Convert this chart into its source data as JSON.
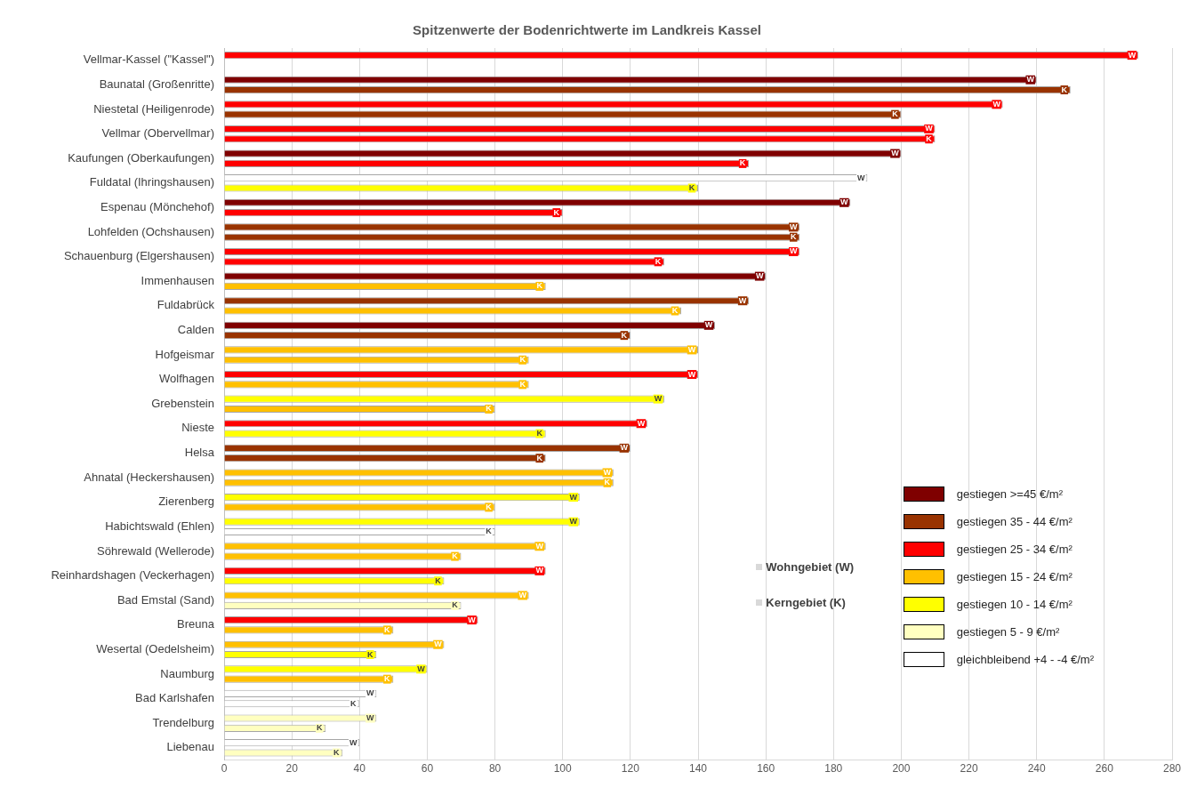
{
  "chart_data": {
    "type": "bar",
    "orientation": "horizontal",
    "title": "Spitzenwerte der Bodenrichtwerte im Landkreis Kassel",
    "categories": [
      "Vellmar-Kassel (\"Kassel\")",
      "Baunatal (Großenritte)",
      "Niestetal (Heiligenrode)",
      "Vellmar (Obervellmar)",
      "Kaufungen (Oberkaufungen)",
      "Fuldatal (Ihringshausen)",
      "Espenau (Mönchehof)",
      "Lohfelden (Ochshausen)",
      "Schauenburg (Elgershausen)",
      "Immenhausen",
      "Fuldabrück",
      "Calden",
      "Hofgeismar",
      "Wolfhagen",
      "Grebenstein",
      "Nieste",
      "Helsa",
      "Ahnatal (Heckershausen)",
      "Zierenberg",
      "Habichtswald (Ehlen)",
      "Söhrewald (Wellerode)",
      "Reinhardshagen (Veckerhagen)",
      "Bad Emstal (Sand)",
      "Breuna",
      "Wesertal (Oedelsheim)",
      "Naumburg",
      "Bad Karlshafen",
      "Trendelburg",
      "Liebenau"
    ],
    "series": [
      {
        "name": "Wohngebiet (W)",
        "color": "#d9d9d9",
        "values": [
          270,
          240,
          230,
          210,
          200,
          190,
          185,
          170,
          170,
          160,
          155,
          145,
          140,
          140,
          130,
          125,
          120,
          115,
          105,
          105,
          95,
          95,
          90,
          75,
          65,
          60,
          45,
          45,
          40
        ],
        "colors": [
          "#ff0000",
          "#7f0000",
          "#ff0000",
          "#ff0000",
          "#7f0000",
          "#ffffff",
          "#7f0000",
          "#993300",
          "#ff0000",
          "#7f0000",
          "#993300",
          "#7f0000",
          "#ffc000",
          "#ff0000",
          "#ffff00",
          "#ff0000",
          "#993300",
          "#ffc000",
          "#ffff00",
          "#ffff00",
          "#ffc000",
          "#ff0000",
          "#ffc000",
          "#ff0000",
          "#ffc000",
          "#ffff00",
          "#ffffff",
          "#ffffc0",
          "#ffffff"
        ],
        "value_labels": [
          "W",
          "W",
          "W",
          "W",
          "W",
          "W",
          "W",
          "W",
          "W",
          "W",
          "W",
          "W",
          "W",
          "W",
          "W",
          "W",
          "W",
          "W",
          "W",
          "W",
          "W",
          "W",
          "W",
          "W",
          "W",
          "W",
          "W",
          "W",
          "W"
        ]
      },
      {
        "name": "Kerngebiet (K)",
        "color": "#d9d9d9",
        "values": [
          null,
          250,
          200,
          210,
          155,
          140,
          100,
          170,
          130,
          95,
          135,
          120,
          90,
          90,
          80,
          95,
          95,
          115,
          80,
          80,
          70,
          65,
          70,
          50,
          45,
          50,
          40,
          30,
          35
        ],
        "colors": [
          null,
          "#993300",
          "#993300",
          "#ff0000",
          "#ff0000",
          "#ffff00",
          "#ff0000",
          "#993300",
          "#ff0000",
          "#ffc000",
          "#ffc000",
          "#993300",
          "#ffc000",
          "#ffc000",
          "#ffc000",
          "#ffff00",
          "#993300",
          "#ffc000",
          "#ffc000",
          "#ffffff",
          "#ffc000",
          "#ffff00",
          "#ffffc0",
          "#ffc000",
          "#ffff00",
          "#ffc000",
          "#ffffff",
          "#ffffc0",
          "#ffffc0"
        ],
        "value_labels": [
          null,
          "K",
          "K",
          "K",
          "K",
          "K",
          "K",
          "K",
          "K",
          "K",
          "K",
          "K",
          "K",
          "K",
          "K",
          "K",
          "K",
          "K",
          "K",
          "K",
          "K",
          "K",
          "K",
          "K",
          "K",
          "K",
          "K",
          "K",
          "K"
        ]
      },
      {
        "name": "gestiegen >=45 €/m²",
        "color": "#7f0000",
        "values": [
          null,
          null,
          null,
          null,
          null,
          null,
          null,
          null,
          null,
          null,
          null,
          null,
          null,
          null,
          null,
          null,
          null,
          null,
          null,
          null,
          null,
          null,
          null,
          null,
          null,
          null,
          null,
          null,
          null
        ]
      },
      {
        "name": "gestiegen 35 - 44 €/m²",
        "color": "#993300",
        "values": [
          null,
          null,
          null,
          null,
          null,
          null,
          null,
          null,
          null,
          null,
          null,
          null,
          null,
          null,
          null,
          null,
          null,
          null,
          null,
          null,
          null,
          null,
          null,
          null,
          null,
          null,
          null,
          null,
          null
        ]
      },
      {
        "name": "gestiegen 25 - 34 €/m²",
        "color": "#ff0000",
        "values": [
          null,
          null,
          null,
          null,
          null,
          null,
          null,
          null,
          null,
          null,
          null,
          null,
          null,
          null,
          null,
          null,
          null,
          null,
          null,
          null,
          null,
          null,
          null,
          null,
          null,
          null,
          null,
          null,
          null
        ]
      },
      {
        "name": "gestiegen 15 - 24 €/m²",
        "color": "#ffc000",
        "values": [
          null,
          null,
          null,
          null,
          null,
          null,
          null,
          null,
          null,
          null,
          null,
          null,
          null,
          null,
          null,
          null,
          null,
          null,
          null,
          null,
          null,
          null,
          null,
          null,
          null,
          null,
          null,
          null,
          null
        ]
      },
      {
        "name": "gestiegen 10 - 14 €/m²",
        "color": "#ffff00",
        "values": [
          null,
          null,
          null,
          null,
          null,
          null,
          null,
          null,
          null,
          null,
          null,
          null,
          null,
          null,
          null,
          null,
          null,
          null,
          null,
          null,
          null,
          null,
          null,
          null,
          null,
          null,
          null,
          null,
          null
        ]
      },
      {
        "name": "gestiegen 5 - 9 €/m²",
        "color": "#ffffc0",
        "values": [
          null,
          null,
          null,
          null,
          null,
          null,
          null,
          null,
          null,
          null,
          null,
          null,
          null,
          null,
          null,
          null,
          null,
          null,
          null,
          null,
          null,
          null,
          null,
          null,
          null,
          null,
          null,
          null,
          null
        ]
      },
      {
        "name": "gleichbleibend +4 - -4 €/m²",
        "color": "#ffffff",
        "values": [
          null,
          null,
          null,
          null,
          null,
          null,
          null,
          null,
          null,
          null,
          null,
          null,
          null,
          null,
          null,
          null,
          null,
          null,
          null,
          null,
          null,
          null,
          null,
          null,
          null,
          null,
          null,
          null,
          null
        ]
      }
    ],
    "xlim": [
      0,
      280
    ],
    "xticks": [
      0,
      20,
      40,
      60,
      80,
      100,
      120,
      140,
      160,
      180,
      200,
      220,
      240,
      260,
      280
    ],
    "grid": "x",
    "legend": "bottom right"
  }
}
